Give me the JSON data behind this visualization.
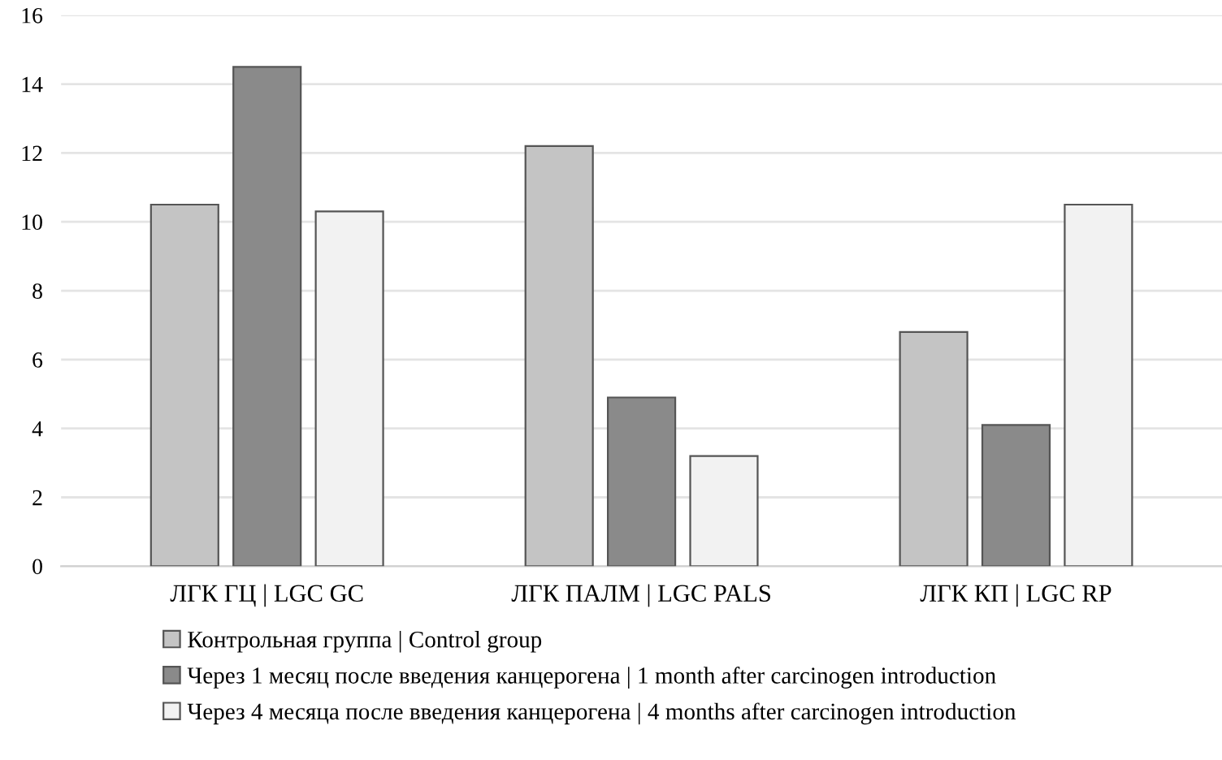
{
  "chart_data": {
    "type": "bar",
    "categories": [
      "ЛГК ГЦ | LGC GC",
      "ЛГК ПАЛМ | LGC PALS",
      "ЛГК КП | LGC RP"
    ],
    "series": [
      {
        "name": "Контрольная группа | Control group",
        "color": "#c4c4c4",
        "values": [
          10.5,
          12.2,
          6.8
        ]
      },
      {
        "name": "Через 1 месяц после введения канцерогена | 1 month after carcinogen introduction",
        "color": "#8a8a8a",
        "values": [
          14.5,
          4.9,
          4.1
        ]
      },
      {
        "name": "Через 4 месяца после введения канцерогена | 4 months after carcinogen introduction",
        "color": "#f2f2f2",
        "values": [
          10.3,
          3.2,
          10.5
        ]
      }
    ],
    "ylim": [
      0,
      16
    ],
    "yticks": [
      0,
      2,
      4,
      6,
      8,
      10,
      12,
      14,
      16
    ],
    "grid": "y",
    "legend": "bottom"
  }
}
